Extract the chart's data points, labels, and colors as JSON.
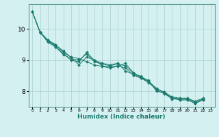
{
  "title": "",
  "xlabel": "Humidex (Indice chaleur)",
  "ylabel": "",
  "bg_color": "#d4f0f0",
  "grid_color": "#aad0d0",
  "line_color": "#1a7a6e",
  "marker_color": "#1a7a6e",
  "xlim": [
    -0.5,
    23.5
  ],
  "ylim": [
    7.5,
    10.8
  ],
  "yticks": [
    8,
    9,
    10
  ],
  "xticks": [
    0,
    1,
    2,
    3,
    4,
    5,
    6,
    7,
    8,
    9,
    10,
    11,
    12,
    13,
    14,
    15,
    16,
    17,
    18,
    19,
    20,
    21,
    22,
    23
  ],
  "series": [
    [
      10.55,
      9.9,
      9.6,
      9.45,
      9.2,
      9.0,
      8.95,
      9.25,
      9.0,
      8.9,
      8.85,
      8.9,
      8.65,
      8.55,
      8.45,
      8.3,
      8.1,
      7.95,
      7.75,
      7.75,
      7.75,
      7.6,
      7.75
    ],
    [
      10.55,
      9.9,
      9.65,
      9.5,
      9.25,
      9.1,
      9.05,
      8.95,
      8.85,
      8.8,
      8.75,
      8.8,
      8.9,
      8.6,
      8.45,
      8.35,
      8.0,
      7.95,
      7.8,
      7.75,
      7.75,
      7.65,
      7.75
    ],
    [
      10.55,
      9.88,
      9.62,
      9.48,
      9.3,
      9.08,
      8.85,
      9.1,
      9.0,
      8.82,
      8.78,
      8.82,
      8.75,
      8.52,
      8.42,
      8.28,
      8.05,
      7.92,
      7.78,
      7.72,
      7.72,
      7.62,
      7.72
    ],
    [
      10.55,
      9.9,
      9.58,
      9.42,
      9.18,
      9.05,
      9.0,
      9.2,
      8.95,
      8.88,
      8.82,
      8.88,
      8.82,
      8.58,
      8.48,
      8.32,
      8.08,
      7.98,
      7.82,
      7.78,
      7.78,
      7.68,
      7.78
    ]
  ]
}
